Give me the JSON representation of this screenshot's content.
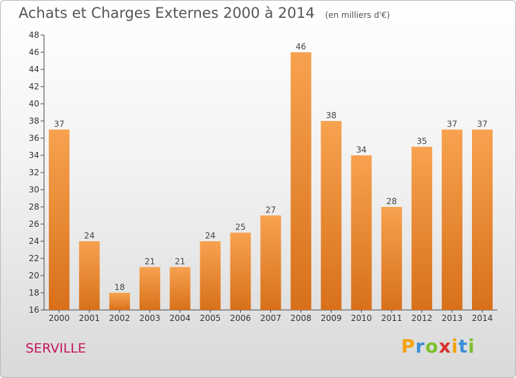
{
  "chart_data": {
    "type": "bar",
    "title": "Achats et Charges Externes 2000 à 2014",
    "subtitle": "(en milliers d'€)",
    "categories": [
      "2000",
      "2001",
      "2002",
      "2003",
      "2004",
      "2005",
      "2006",
      "2007",
      "2008",
      "2009",
      "2010",
      "2011",
      "2012",
      "2013",
      "2014"
    ],
    "values": [
      37,
      24,
      18,
      21,
      21,
      24,
      25,
      27,
      46,
      38,
      34,
      28,
      35,
      37,
      37
    ],
    "ylim": [
      16,
      48
    ],
    "yticks": [
      16,
      18,
      20,
      22,
      24,
      26,
      28,
      30,
      32,
      34,
      36,
      38,
      40,
      42,
      44,
      46,
      48
    ],
    "grid": false,
    "bar_color_top": "#f7a24f",
    "bar_color_bottom": "#d8701a"
  },
  "footer": {
    "commune": "SERVILLE",
    "logo_letters": [
      "P",
      "r",
      "o",
      "x",
      "i",
      "t",
      "i"
    ],
    "logo_colors": [
      "#f4a30a",
      "#3b8fd6",
      "#7bbf2a",
      "#d8322a",
      "#f4a30a",
      "#3b8fd6",
      "#7bbf2a"
    ]
  }
}
